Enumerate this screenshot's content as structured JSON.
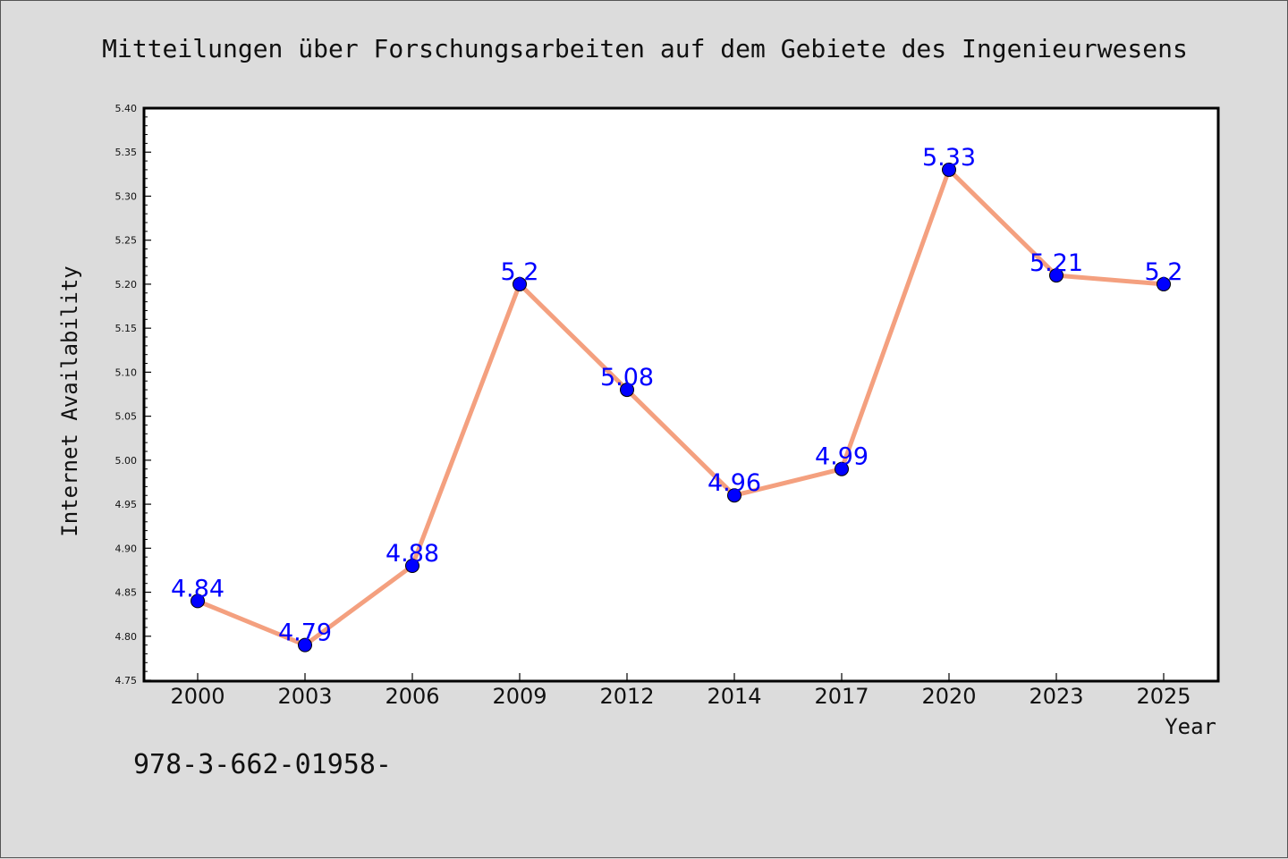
{
  "chart_data": {
    "type": "line",
    "title": "Mitteilungen über Forschungsarbeiten auf dem Gebiete des Ingenieurwesens",
    "xlabel": "Year",
    "ylabel": "Internet Availability",
    "categories": [
      "2000",
      "2003",
      "2006",
      "2009",
      "2012",
      "2014",
      "2017",
      "2020",
      "2023",
      "2025"
    ],
    "series": [
      {
        "values": [
          4.84,
          4.79,
          4.88,
          5.2,
          5.08,
          4.96,
          4.99,
          5.33,
          5.21,
          5.2
        ],
        "labels": [
          "4.84",
          "4.79",
          "4.88",
          "5.2",
          "5.08",
          "4.96",
          "4.99",
          "5.33",
          "5.21",
          "5.2"
        ],
        "line_color": "#f4a07f",
        "marker_color": "#0000ff"
      }
    ],
    "ylim": [
      4.75,
      5.4
    ],
    "yticks": [
      "4.75",
      "4.80",
      "4.85",
      "4.90",
      "4.95",
      "5.00",
      "5.05",
      "5.10",
      "5.15",
      "5.20",
      "5.25",
      "5.30",
      "5.35",
      "5.40"
    ],
    "grid": false,
    "legend": "none"
  },
  "footer": {
    "code": "978-3-662-01958-"
  },
  "colors": {
    "background": "#dcdcdc",
    "plot_background": "#ffffff",
    "label_color": "#0000ff"
  }
}
